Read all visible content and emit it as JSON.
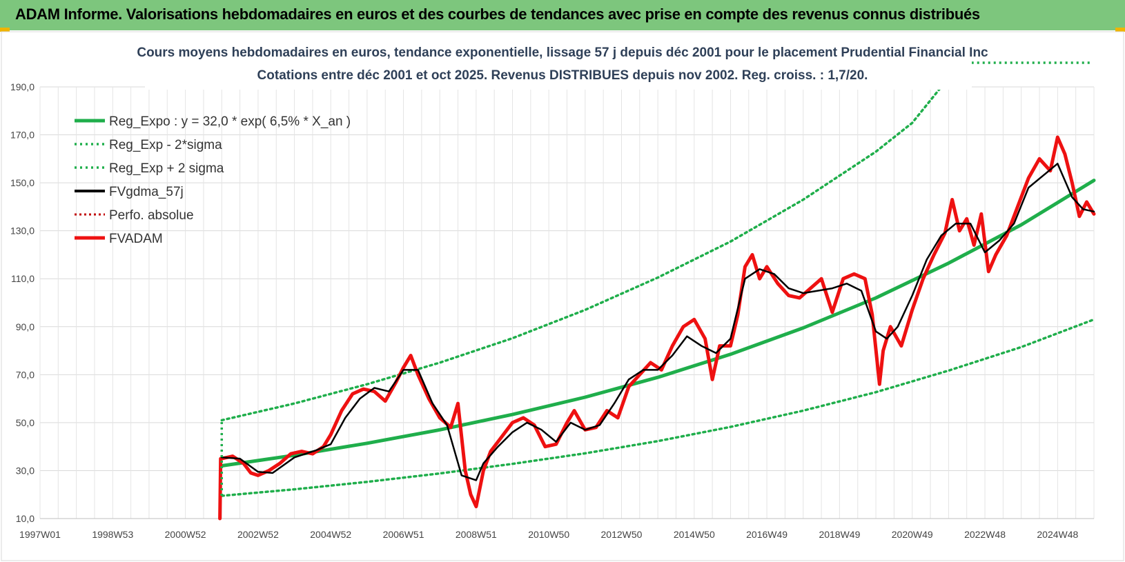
{
  "banner": {
    "title": "ADAM Informe. Valorisations hebdomadaires en euros et des courbes de tendances avec prise en compte des revenus connus distribués"
  },
  "chart_data": {
    "type": "line",
    "title": "Cours moyens hebdomadaires en euros, tendance exponentielle, lissage 57 j depuis déc 2001 pour le placement Prudential Financial Inc",
    "subtitle": "Cotations entre déc 2001 et oct 2025.  Revenus DISTRIBUES depuis nov 2002. Reg. croiss. : 1,7/20.",
    "xlabel": "",
    "ylabel": "",
    "ylim": [
      10,
      190
    ],
    "xlim": [
      1997.0,
      2026.0
    ],
    "yticks": [
      "10,0",
      "30,0",
      "50,0",
      "70,0",
      "90,0",
      "110,0",
      "130,0",
      "150,0",
      "170,0",
      "190,0"
    ],
    "xticks": [
      {
        "label": "1997W01",
        "x": 1997.0
      },
      {
        "label": "1998W53",
        "x": 1999.0
      },
      {
        "label": "2000W52",
        "x": 2001.0
      },
      {
        "label": "2002W52",
        "x": 2003.0
      },
      {
        "label": "2004W52",
        "x": 2005.0
      },
      {
        "label": "2006W51",
        "x": 2007.0
      },
      {
        "label": "2008W51",
        "x": 2009.0
      },
      {
        "label": "2010W50",
        "x": 2011.0
      },
      {
        "label": "2012W50",
        "x": 2013.0
      },
      {
        "label": "2014W50",
        "x": 2015.0
      },
      {
        "label": "2016W49",
        "x": 2017.0
      },
      {
        "label": "2018W49",
        "x": 2019.0
      },
      {
        "label": "2020W49",
        "x": 2021.0
      },
      {
        "label": "2022W48",
        "x": 2023.0
      },
      {
        "label": "2024W48",
        "x": 2025.0
      }
    ],
    "grid": true,
    "legend_position": "top-left",
    "series": [
      {
        "name": "Reg_Expo : y = 32,0 * exp( 6,5% *  X_an )",
        "color": "#1fae4b",
        "style": "solid-thick",
        "x": [
          2002.0,
          2004.0,
          2006.0,
          2008.0,
          2010.0,
          2012.0,
          2014.0,
          2016.0,
          2018.0,
          2020.0,
          2022.0,
          2024.0,
          2026.0
        ],
        "y": [
          32.0,
          36.4,
          41.4,
          47.0,
          53.4,
          60.6,
          68.9,
          78.5,
          89.5,
          102.0,
          116.5,
          132.5,
          151.0
        ]
      },
      {
        "name": "Reg_Exp - 2*sigma",
        "color": "#1fae4b",
        "style": "dotted",
        "x": [
          2002.0,
          2004.0,
          2006.0,
          2008.0,
          2010.0,
          2012.0,
          2014.0,
          2016.0,
          2018.0,
          2020.0,
          2022.0,
          2024.0,
          2026.0
        ],
        "y": [
          19.5,
          22.2,
          25.3,
          28.8,
          32.8,
          37.2,
          42.3,
          48.2,
          55.0,
          62.7,
          71.7,
          81.5,
          93.0
        ]
      },
      {
        "name": "Reg_Exp + 2 sigma",
        "color": "#1fae4b",
        "style": "dotted",
        "x": [
          2002.0,
          2004.0,
          2006.0,
          2008.0,
          2010.0,
          2012.0,
          2014.0,
          2016.0,
          2018.0,
          2020.0,
          2021.0,
          2021.8
        ],
        "y": [
          51.0,
          58.0,
          66.0,
          75.0,
          85.2,
          97.0,
          110.5,
          125.5,
          143.0,
          163.0,
          175.0,
          190.0
        ]
      },
      {
        "name": "FVgdma_57j",
        "color": "#000000",
        "style": "solid",
        "x": [
          2002.0,
          2002.5,
          2003.0,
          2003.4,
          2004.0,
          2004.6,
          2005.0,
          2005.4,
          2005.8,
          2006.2,
          2006.6,
          2007.0,
          2007.4,
          2007.8,
          2008.2,
          2008.6,
          2009.0,
          2009.2,
          2009.6,
          2010.0,
          2010.4,
          2010.8,
          2011.2,
          2011.6,
          2012.0,
          2012.4,
          2012.8,
          2013.2,
          2013.6,
          2014.0,
          2014.4,
          2014.8,
          2015.2,
          2015.6,
          2016.0,
          2016.4,
          2016.8,
          2017.2,
          2017.6,
          2018.0,
          2018.4,
          2018.8,
          2019.2,
          2019.6,
          2020.0,
          2020.3,
          2020.6,
          2021.0,
          2021.4,
          2021.8,
          2022.2,
          2022.6,
          2023.0,
          2023.4,
          2023.8,
          2024.2,
          2024.6,
          2025.0,
          2025.4,
          2025.7,
          2026.0
        ],
        "y": [
          35.5,
          35.0,
          29.5,
          29.0,
          35.5,
          38.5,
          41.0,
          52.0,
          60.0,
          64.5,
          63.0,
          72.0,
          72.0,
          58.0,
          49.0,
          28.0,
          26.0,
          33.0,
          40.0,
          46.0,
          50.0,
          47.0,
          42.0,
          50.0,
          47.0,
          49.0,
          58.0,
          68.0,
          72.0,
          72.0,
          78.0,
          86.0,
          82.0,
          79.0,
          85.0,
          110.0,
          114.0,
          112.0,
          106.0,
          104.0,
          105.0,
          106.0,
          108.0,
          105.0,
          88.0,
          85.0,
          90.0,
          103.0,
          118.0,
          128.0,
          133.0,
          133.0,
          121.0,
          126.0,
          133.0,
          148.0,
          153.0,
          158.0,
          144.0,
          139.0,
          138.0
        ]
      },
      {
        "name": "Perfo. absolue",
        "color": "#c00000",
        "style": "dotted",
        "x": [],
        "y": []
      },
      {
        "name": "FVADAM",
        "color": "#ee1111",
        "style": "solid-thick",
        "x": [
          2001.95,
          2001.97,
          2002.0,
          2002.3,
          2002.6,
          2002.8,
          2003.0,
          2003.3,
          2003.6,
          2003.9,
          2004.2,
          2004.5,
          2004.8,
          2005.0,
          2005.3,
          2005.6,
          2005.9,
          2006.2,
          2006.5,
          2006.8,
          2007.0,
          2007.2,
          2007.4,
          2007.7,
          2008.0,
          2008.3,
          2008.5,
          2008.7,
          2008.85,
          2009.0,
          2009.2,
          2009.4,
          2009.7,
          2010.0,
          2010.3,
          2010.6,
          2010.9,
          2011.2,
          2011.5,
          2011.7,
          2012.0,
          2012.3,
          2012.6,
          2012.9,
          2013.2,
          2013.5,
          2013.8,
          2014.1,
          2014.4,
          2014.7,
          2015.0,
          2015.3,
          2015.5,
          2015.7,
          2016.0,
          2016.2,
          2016.4,
          2016.6,
          2016.8,
          2017.0,
          2017.3,
          2017.6,
          2017.9,
          2018.2,
          2018.5,
          2018.8,
          2019.1,
          2019.4,
          2019.7,
          2019.9,
          2020.1,
          2020.2,
          2020.4,
          2020.7,
          2021.0,
          2021.3,
          2021.6,
          2021.9,
          2022.1,
          2022.3,
          2022.5,
          2022.7,
          2022.9,
          2023.1,
          2023.3,
          2023.6,
          2023.9,
          2024.2,
          2024.5,
          2024.8,
          2025.0,
          2025.2,
          2025.4,
          2025.6,
          2025.8,
          2026.0
        ],
        "y": [
          10.0,
          35.0,
          35.0,
          36.0,
          33.0,
          29.0,
          28.0,
          30.0,
          33.0,
          37.0,
          38.0,
          37.0,
          40.0,
          45.0,
          55.0,
          62.0,
          64.0,
          63.0,
          59.0,
          67.0,
          73.0,
          78.0,
          70.0,
          60.0,
          52.0,
          48.0,
          58.0,
          30.0,
          20.0,
          15.0,
          30.0,
          38.0,
          44.0,
          50.0,
          52.0,
          49.0,
          40.0,
          41.0,
          50.0,
          55.0,
          47.0,
          48.0,
          55.0,
          52.0,
          65.0,
          70.0,
          75.0,
          72.0,
          82.0,
          90.0,
          93.0,
          85.0,
          68.0,
          82.0,
          82.0,
          95.0,
          115.0,
          120.0,
          110.0,
          115.0,
          108.0,
          103.0,
          102.0,
          106.0,
          110.0,
          96.0,
          110.0,
          112.0,
          110.0,
          95.0,
          66.0,
          80.0,
          90.0,
          82.0,
          97.0,
          110.0,
          120.0,
          129.0,
          143.0,
          130.0,
          135.0,
          124.0,
          137.0,
          113.0,
          120.0,
          128.0,
          140.0,
          152.0,
          160.0,
          155.0,
          169.0,
          162.0,
          150.0,
          136.0,
          142.0,
          137.0
        ]
      }
    ]
  }
}
